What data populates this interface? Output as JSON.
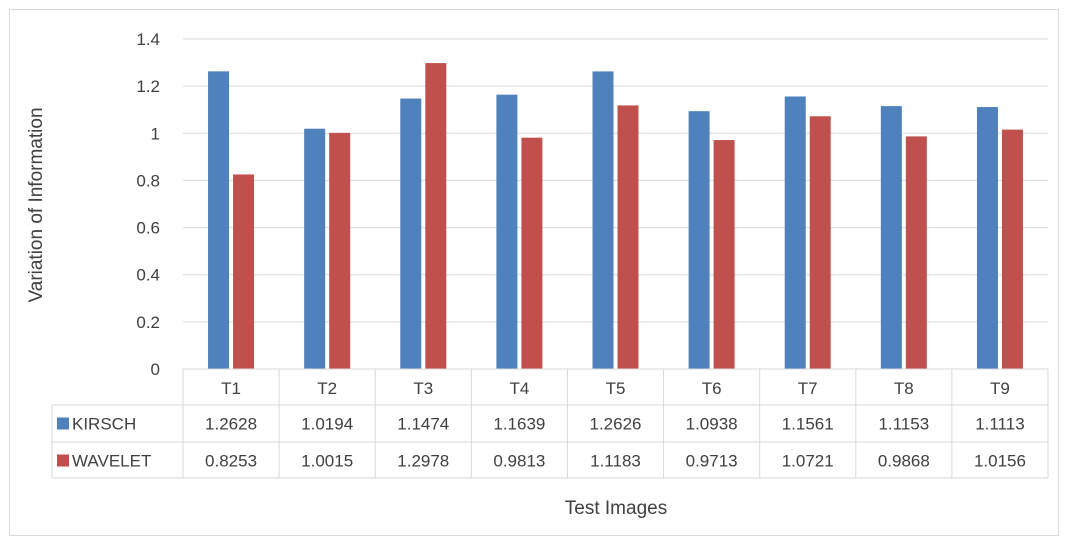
{
  "chart_data": {
    "type": "bar",
    "title": "",
    "xlabel": "Test Images",
    "ylabel": "Variation of Information",
    "ylim": [
      0,
      1.4
    ],
    "yticks": [
      "0",
      "0.2",
      "0.4",
      "0.6",
      "0.8",
      "1",
      "1.2",
      "1.4"
    ],
    "grid": true,
    "legend": "data-table-left",
    "categories": [
      "T1",
      "T2",
      "T3",
      "T4",
      "T5",
      "T6",
      "T7",
      "T8",
      "T9"
    ],
    "series": [
      {
        "name": "KIRSCH",
        "color": "#4f81bd",
        "values": [
          1.2628,
          1.0194,
          1.1474,
          1.1639,
          1.2626,
          1.0938,
          1.1561,
          1.1153,
          1.1113
        ],
        "labels": [
          "1.2628",
          "1.0194",
          "1.1474",
          "1.1639",
          "1.2626",
          "1.0938",
          "1.1561",
          "1.1153",
          "1.1113"
        ]
      },
      {
        "name": "WAVELET",
        "color": "#c0504d",
        "values": [
          0.8253,
          1.0015,
          1.2978,
          0.9813,
          1.1183,
          0.9713,
          1.0721,
          0.9868,
          1.0156
        ],
        "labels": [
          "0.8253",
          "1.0015",
          "1.2978",
          "0.9813",
          "1.1183",
          "0.9713",
          "1.0721",
          "0.9868",
          "1.0156"
        ]
      }
    ]
  }
}
